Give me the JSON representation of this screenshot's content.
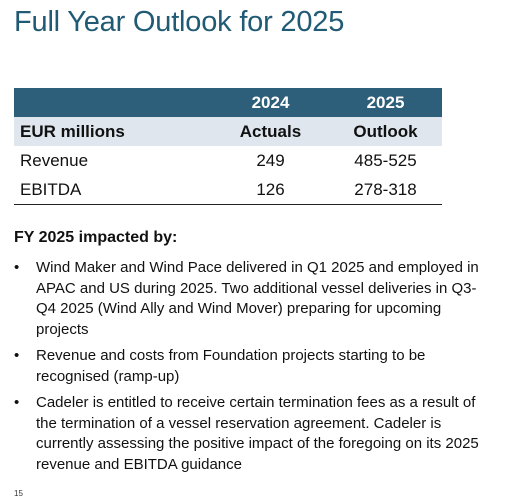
{
  "slide": {
    "title": "Full Year Outlook for 2025",
    "page_number": "15"
  },
  "table": {
    "year_headers": [
      "",
      "2024",
      "2025"
    ],
    "sub_headers": [
      "EUR millions",
      "Actuals",
      "Outlook"
    ],
    "rows": [
      [
        "Revenue",
        "249",
        "485-525"
      ],
      [
        "EBITDA",
        "126",
        "278-318"
      ]
    ]
  },
  "impact": {
    "heading": "FY 2025 impacted by:",
    "bullet_symbol": "•",
    "items": [
      "Wind Maker and Wind Pace delivered in Q1 2025 and employed in APAC and US during 2025. Two additional vessel deliveries in Q3-Q4 2025 (Wind Ally and Wind Mover) preparing for upcoming projects",
      "Revenue and costs from Foundation projects starting to be recognised (ramp-up)",
      "Cadeler is entitled to receive certain termination fees as a result of the termination of a vessel reservation agreement. Cadeler is currently assessing the positive impact of the foregoing on its 2025 revenue and EBITDA guidance"
    ]
  },
  "colors": {
    "title": "#215a74",
    "header_band": "#2d5e7a",
    "subheader_band": "#dfe6ed"
  }
}
